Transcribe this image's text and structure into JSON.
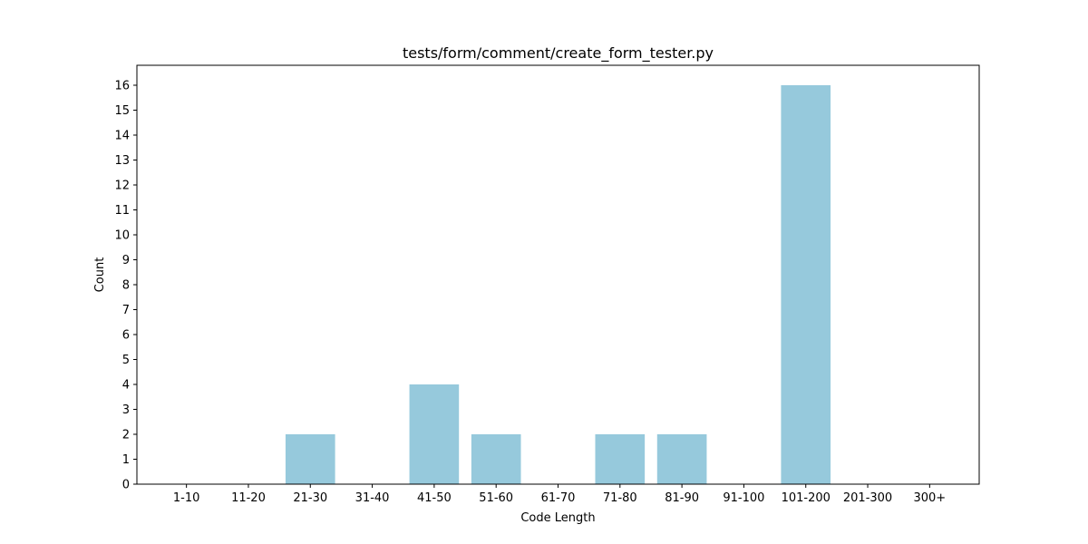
{
  "chart_data": {
    "type": "bar",
    "title": "tests/form/comment/create_form_tester.py",
    "xlabel": "Code Length",
    "ylabel": "Count",
    "categories": [
      "1-10",
      "11-20",
      "21-30",
      "31-40",
      "41-50",
      "51-60",
      "61-70",
      "71-80",
      "81-90",
      "91-100",
      "101-200",
      "201-300",
      "300+"
    ],
    "values": [
      0,
      0,
      2,
      0,
      4,
      2,
      0,
      2,
      2,
      0,
      16,
      0,
      0
    ],
    "ylim": [
      0,
      16.8
    ],
    "yticks": [
      0,
      1,
      2,
      3,
      4,
      5,
      6,
      7,
      8,
      9,
      10,
      11,
      12,
      13,
      14,
      15,
      16
    ],
    "bar_color": "#96c9dc",
    "grid": false,
    "legend": "none"
  }
}
